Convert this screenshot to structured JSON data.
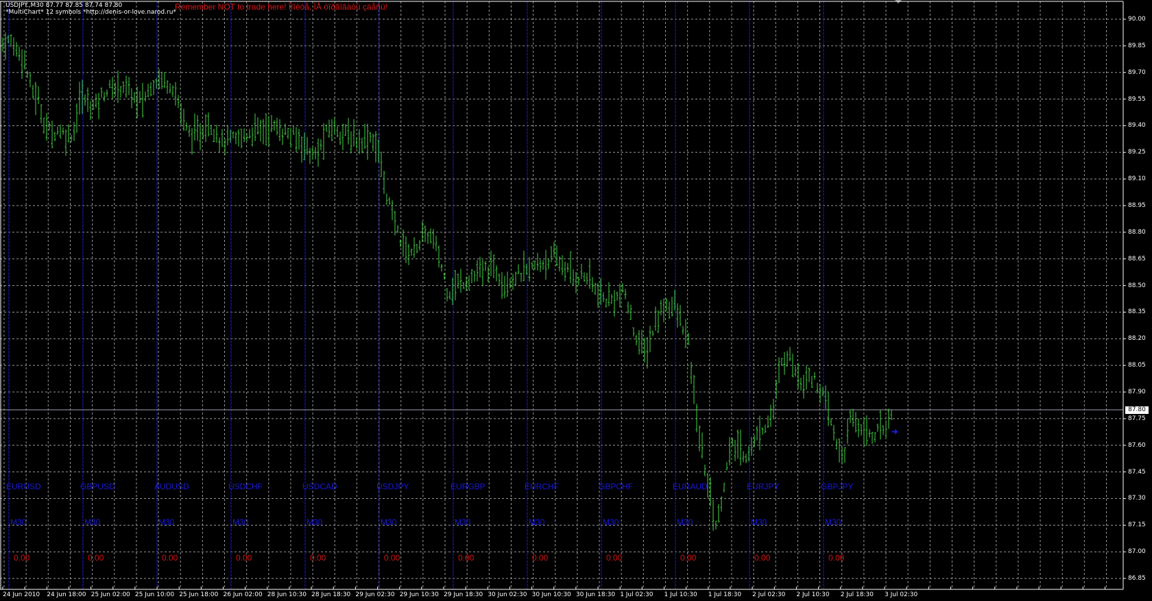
{
  "header": {
    "line1": "USDJPY.,M30  87.77 87.85 87.74 87.80",
    "line2": "*MultiChart* 12 symbols *http://denis-or-love.narod.ru*",
    "warning": "Remember NOT to trade here! Ïîìèòå, ÍÅ òîðãîâàòü çäåñü!"
  },
  "colors": {
    "background": "#000000",
    "bars": "#44d444",
    "grid": "#9a9a9a",
    "separator": "#1a1ad8",
    "symbol_text": "#1a1ad8",
    "value_text": "#d41414",
    "axis": "#ffffff"
  },
  "symbols": [
    {
      "name": "EURUSD",
      "tf": "M30",
      "value": "0.00"
    },
    {
      "name": "GBPUSD",
      "tf": "M30",
      "value": "0.00"
    },
    {
      "name": "AUDUSD",
      "tf": "M30",
      "value": "0.00"
    },
    {
      "name": "USDCHF",
      "tf": "M30",
      "value": "0.00"
    },
    {
      "name": "USDCAD",
      "tf": "M30",
      "value": "0.00"
    },
    {
      "name": "USDJPY",
      "tf": "M30",
      "value": "0.00"
    },
    {
      "name": "EURGBP",
      "tf": "M30",
      "value": "0.00"
    },
    {
      "name": "EURCHF",
      "tf": "M30",
      "value": "0.00"
    },
    {
      "name": "GBPCHF",
      "tf": "M30",
      "value": "0.00"
    },
    {
      "name": "EURAUD",
      "tf": "M30",
      "value": "0.00"
    },
    {
      "name": "EURJPY",
      "tf": "M30",
      "value": "0.00"
    },
    {
      "name": "GBPJPY",
      "tf": "M30",
      "value": "0.00"
    }
  ],
  "chart_data": {
    "type": "bar",
    "symbol": "USDJPY.",
    "timeframe": "M30",
    "current_price": "87.80",
    "y_ticks": [
      "90.00",
      "89.85",
      "89.70",
      "89.55",
      "89.40",
      "89.25",
      "89.10",
      "88.95",
      "88.80",
      "88.65",
      "88.50",
      "88.35",
      "88.20",
      "88.05",
      "87.90",
      "87.75",
      "87.60",
      "87.45",
      "87.30",
      "87.15",
      "87.00",
      "86.85"
    ],
    "ylim": [
      86.85,
      90.0
    ],
    "x_ticks": [
      "24 Jun 2010",
      "24 Jun 18:00",
      "25 Jun 02:00",
      "25 Jun 10:00",
      "25 Jun 18:00",
      "26 Jun 02:00",
      "28 Jun 10:30",
      "28 Jun 18:30",
      "29 Jun 02:30",
      "29 Jun 10:30",
      "29 Jun 18:30",
      "30 Jun 02:30",
      "30 Jun 10:30",
      "30 Jun 18:30",
      "1 Jul 02:30",
      "1 Jul 10:30",
      "1 Jul 18:30",
      "2 Jul 02:30",
      "2 Jul 10:30",
      "2 Jul 18:30",
      "3 Jul 02:30"
    ],
    "grid": true,
    "price_path": [
      89.86,
      89.88,
      89.83,
      89.78,
      89.61,
      89.55,
      89.4,
      89.36,
      89.38,
      89.34,
      89.36,
      89.57,
      89.53,
      89.51,
      89.57,
      89.61,
      89.61,
      89.63,
      89.59,
      89.53,
      89.55,
      89.63,
      89.67,
      89.65,
      89.63,
      89.51,
      89.38,
      89.34,
      89.36,
      89.42,
      89.38,
      89.3,
      89.32,
      89.32,
      89.34,
      89.36,
      89.38,
      89.38,
      89.4,
      89.38,
      89.36,
      89.34,
      89.32,
      89.28,
      89.22,
      89.28,
      89.38,
      89.39,
      89.36,
      89.34,
      89.32,
      89.32,
      89.34,
      89.28,
      89.07,
      88.91,
      88.79,
      88.7,
      88.69,
      88.75,
      88.79,
      88.75,
      88.62,
      88.46,
      88.5,
      88.52,
      88.54,
      88.56,
      88.58,
      88.6,
      88.58,
      88.52,
      88.54,
      88.56,
      88.58,
      88.6,
      88.62,
      88.64,
      88.66,
      88.62,
      88.58,
      88.54,
      88.56,
      88.54,
      88.46,
      88.42,
      88.42,
      88.44,
      88.46,
      88.29,
      88.17,
      88.12,
      88.25,
      88.35,
      88.4,
      88.38,
      88.29,
      88.17,
      87.8,
      87.54,
      87.34,
      87.13,
      87.38,
      87.59,
      87.59,
      87.54,
      87.59,
      87.68,
      87.72,
      87.8,
      88.04,
      88.12,
      88.04,
      87.96,
      88.0,
      87.96,
      87.88,
      87.76,
      87.59,
      87.54,
      87.76,
      87.72,
      87.68,
      87.66,
      87.68,
      87.72,
      87.8
    ]
  }
}
